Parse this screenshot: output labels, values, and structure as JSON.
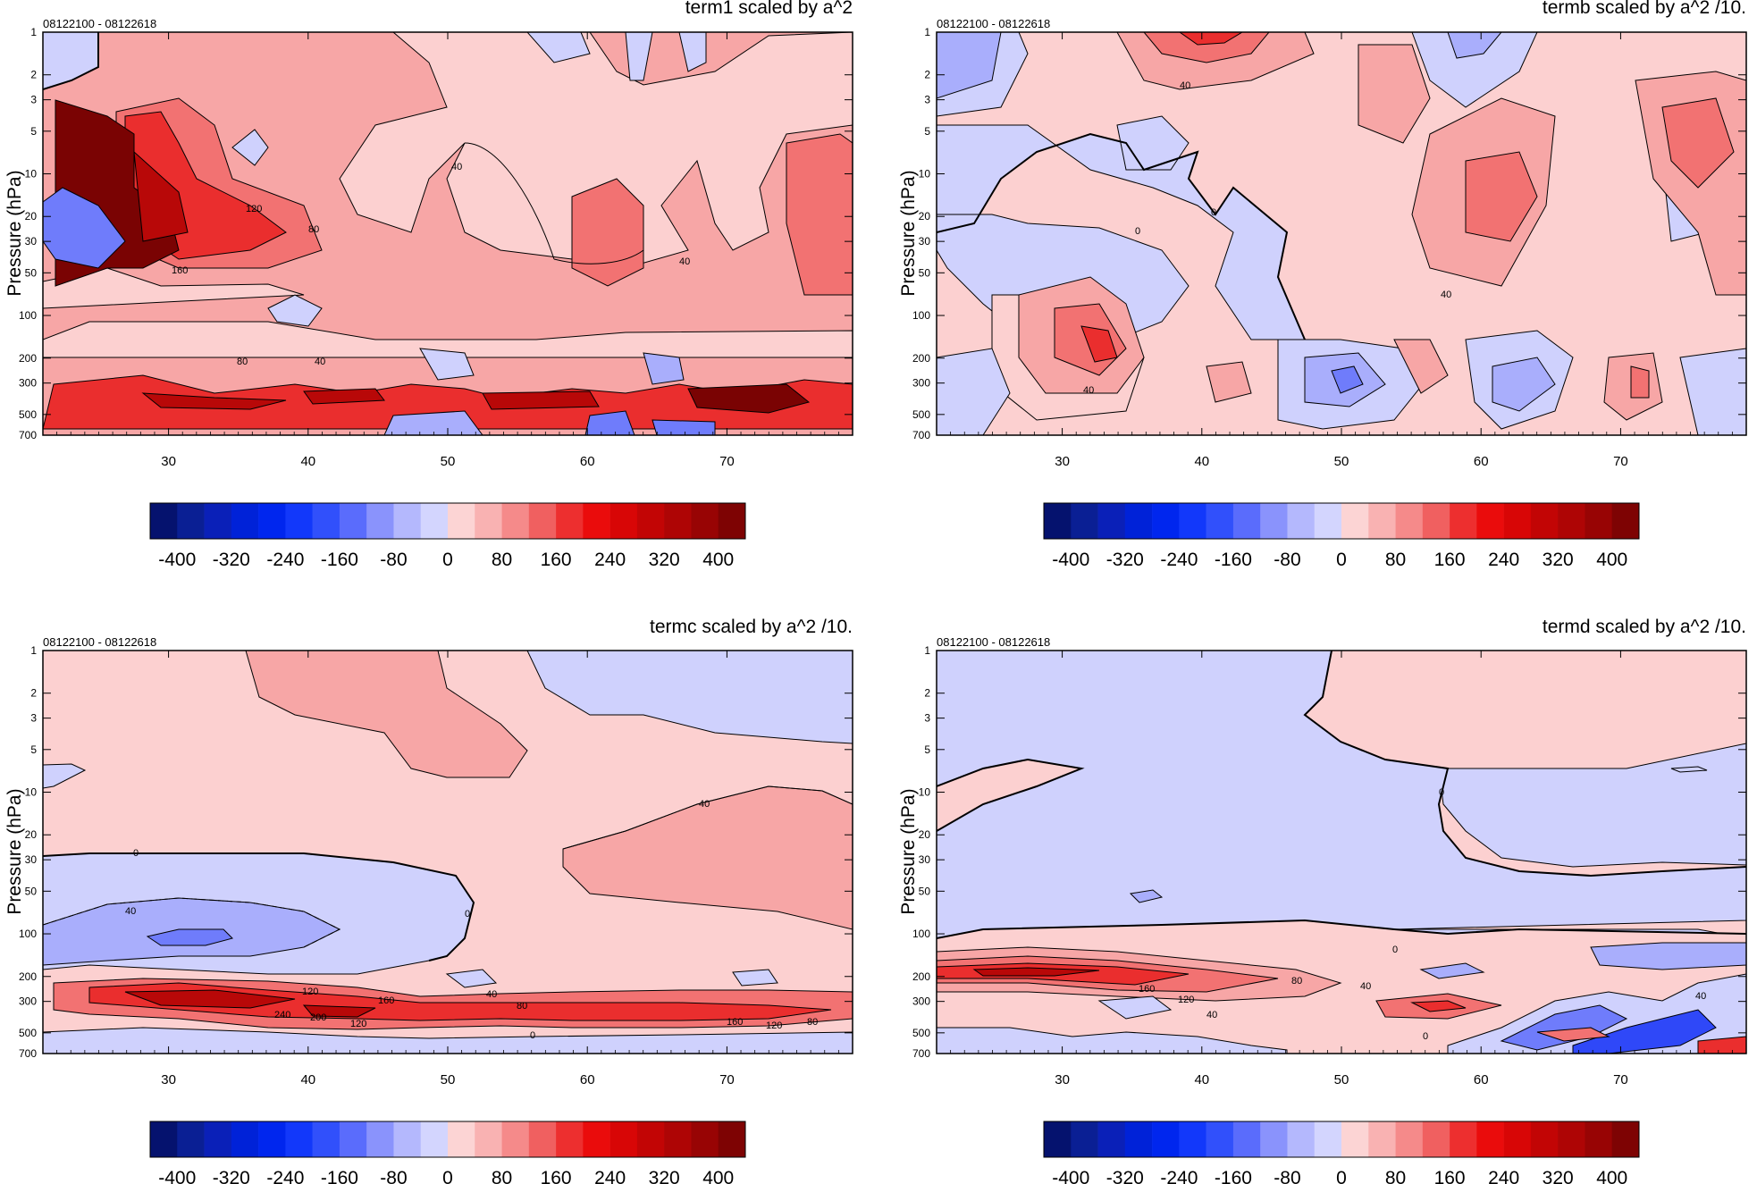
{
  "chart_data": [
    {
      "type": "heatmap",
      "title": "term1 scaled by a^2",
      "subtitle": "08122100 - 08122618",
      "ylabel": "Pressure (hPa)",
      "x_ticks": [
        30,
        40,
        50,
        60,
        70
      ],
      "y_ticks": [
        1,
        2,
        3,
        5,
        10,
        20,
        30,
        50,
        100,
        200,
        300,
        500,
        700
      ],
      "xlim": [
        21,
        79
      ],
      "ylim": [
        1,
        700
      ],
      "y_scale": "log",
      "y_reversed": true,
      "contour_labels": [
        "40",
        "80",
        "120",
        "160",
        "40",
        "80",
        "40"
      ]
    },
    {
      "type": "heatmap",
      "title": "termb scaled by a^2 /10.",
      "subtitle": "08122100 - 08122618",
      "ylabel": "Pressure (hPa)",
      "x_ticks": [
        30,
        40,
        50,
        60,
        70
      ],
      "y_ticks": [
        1,
        2,
        3,
        5,
        10,
        20,
        30,
        50,
        100,
        200,
        300,
        500,
        700
      ],
      "xlim": [
        21,
        79
      ],
      "ylim": [
        1,
        700
      ],
      "y_scale": "log",
      "y_reversed": true,
      "contour_labels": [
        "40",
        "0",
        "0",
        "40",
        "40"
      ]
    },
    {
      "type": "heatmap",
      "title": "termc scaled by a^2 /10.",
      "subtitle": "08122100 - 08122618",
      "ylabel": "Pressure (hPa)",
      "x_ticks": [
        30,
        40,
        50,
        60,
        70
      ],
      "y_ticks": [
        1,
        2,
        3,
        5,
        10,
        20,
        30,
        50,
        100,
        200,
        300,
        500,
        700
      ],
      "xlim": [
        21,
        79
      ],
      "ylim": [
        1,
        700
      ],
      "y_scale": "log",
      "y_reversed": true,
      "contour_labels": [
        "40",
        "0",
        "40",
        "0",
        "120",
        "160",
        "240",
        "200",
        "120",
        "40",
        "80",
        "160",
        "120",
        "80",
        "0"
      ]
    },
    {
      "type": "heatmap",
      "title": "termd scaled by a^2 /10.",
      "subtitle": "08122100 - 08122618",
      "ylabel": "Pressure (hPa)",
      "x_ticks": [
        30,
        40,
        50,
        60,
        70
      ],
      "y_ticks": [
        1,
        2,
        3,
        5,
        10,
        20,
        30,
        50,
        100,
        200,
        300,
        500,
        700
      ],
      "xlim": [
        21,
        79
      ],
      "ylim": [
        1,
        700
      ],
      "y_scale": "log",
      "y_reversed": true,
      "contour_labels": [
        "0",
        "0",
        "80",
        "40",
        "160",
        "120",
        "40",
        "0",
        "40"
      ]
    }
  ],
  "colorbar": {
    "tick_labels": [
      "-400",
      "-320",
      "-240",
      "-160",
      "-80",
      "0",
      "80",
      "160",
      "240",
      "320",
      "400"
    ],
    "levels": [
      -440,
      -400,
      -360,
      -320,
      -280,
      -240,
      -200,
      -160,
      -120,
      -80,
      -40,
      0,
      40,
      80,
      120,
      160,
      200,
      240,
      280,
      320,
      360,
      400,
      440
    ],
    "colors": [
      "#05126e",
      "#0a1f94",
      "#0a20b8",
      "#0022d8",
      "#0026ee",
      "#1238fa",
      "#3150fb",
      "#5a6cfc",
      "#8a93fc",
      "#b4b8fd",
      "#d3d5fe",
      "#fcd4d4",
      "#f9b2b2",
      "#f58a8a",
      "#f06060",
      "#ed2f2f",
      "#ea0c0c",
      "#d80606",
      "#c20505",
      "#ae0505",
      "#980404",
      "#7e0303"
    ]
  },
  "colors": {
    "neg1": "#cfd1fd",
    "neg2": "#a9aefc",
    "neg3": "#6f7cfb",
    "neg4": "#2f48f8",
    "pos1": "#fcd0d0",
    "pos2": "#f7a6a6",
    "pos3": "#f27272",
    "pos4": "#ea2e2e",
    "pos5": "#b80808",
    "pos6": "#7a0303"
  }
}
